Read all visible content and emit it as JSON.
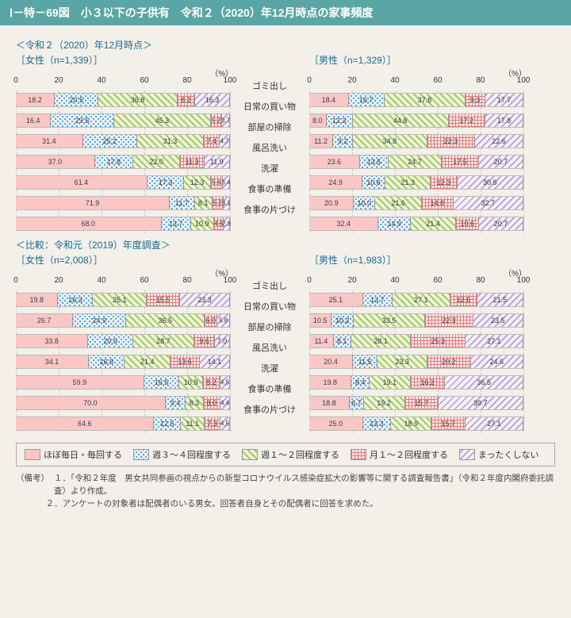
{
  "header": {
    "title": "Ⅰ－特－69図　小３以下の子供有　令和２（2020）年12月時点の家事頻度"
  },
  "category_labels": [
    "ゴミ出し",
    "日常の買い物",
    "部屋の掃除",
    "風呂洗い",
    "洗濯",
    "食事の準備",
    "食事の片づけ"
  ],
  "axis": {
    "ticks": [
      0,
      20,
      40,
      60,
      80,
      100
    ],
    "pct": "（%）"
  },
  "colors": {
    "header": "#5aa5a5",
    "panel_title": "#1a6b8f",
    "background": "#f3f0e9",
    "series": [
      "#fbc6c6",
      "#e8f0f8",
      "#eef5d8",
      "#fde8e8",
      "#f5f0f7"
    ]
  },
  "legend": {
    "labels": [
      "ほぼ毎日・毎回する",
      "週３～４回程度する",
      "週１～２回程度する",
      "月１～２回程度する",
      "まったくしない"
    ]
  },
  "sections": [
    {
      "title": "＜令和２（2020）年12月時点＞",
      "panels": [
        {
          "label": "［女性（n=1,339）］",
          "rows": [
            [
              18.2,
              20.5,
              36.8,
              8.2,
              16.3
            ],
            [
              16.4,
              29.5,
              45.3,
              5.2,
              3.7
            ],
            [
              31.4,
              25.2,
              31.3,
              7.4,
              4.7
            ],
            [
              37.0,
              17.8,
              22.0,
              11.3,
              11.9
            ],
            [
              61.4,
              17.3,
              12.3,
              5.6,
              3.4
            ],
            [
              71.9,
              11.7,
              8.1,
              5.2,
              3.1
            ],
            [
              68.0,
              13.7,
              10.9,
              4.6,
              2.8
            ]
          ]
        },
        {
          "label": "［男性（n=1,329）］",
          "rows": [
            [
              18.4,
              16.7,
              37.8,
              9.3,
              17.7
            ],
            [
              8.0,
              12.3,
              44.8,
              17.2,
              17.8
            ],
            [
              11.2,
              9.2,
              34.8,
              22.3,
              22.6
            ],
            [
              23.6,
              13.5,
              24.7,
              17.5,
              20.7
            ],
            [
              24.9,
              10.6,
              21.3,
              12.3,
              30.9
            ],
            [
              20.9,
              10.0,
              21.6,
              14.8,
              32.7
            ],
            [
              32.4,
              14.9,
              21.4,
              10.6,
              20.7
            ]
          ]
        }
      ]
    },
    {
      "title": "＜比較：令和元（2019）年度調査＞",
      "panels": [
        {
          "label": "［女性（n=2,008）］",
          "rows": [
            [
              19.8,
              16.3,
              25.1,
              15.5,
              23.3
            ],
            [
              26.7,
              24.9,
              36.5,
              6.0,
              5.8
            ],
            [
              33.8,
              20.9,
              28.7,
              9.6,
              7.0
            ],
            [
              34.1,
              16.8,
              21.4,
              13.6,
              14.1
            ],
            [
              59.9,
              16.5,
              10.9,
              8.2,
              4.5
            ],
            [
              70.0,
              9.4,
              8.3,
              8.0,
              4.4
            ],
            [
              64.6,
              12.5,
              11.1,
              7.3,
              4.5
            ]
          ]
        },
        {
          "label": "［男性（n=1,983）］",
          "rows": [
            [
              25.1,
              13.7,
              27.1,
              12.6,
              21.5
            ],
            [
              10.5,
              10.2,
              33.5,
              22.3,
              23.5
            ],
            [
              11.4,
              8.1,
              28.1,
              25.3,
              27.1
            ],
            [
              20.4,
              11.5,
              23.3,
              20.2,
              24.6
            ],
            [
              19.8,
              8.4,
              19.1,
              16.2,
              36.5
            ],
            [
              18.8,
              6.7,
              19.2,
              15.7,
              39.7
            ],
            [
              25.0,
              13.3,
              18.9,
              15.7,
              27.1
            ]
          ]
        }
      ]
    }
  ],
  "notes": {
    "lead": "（備考）",
    "items": [
      "１．「令和２年度　男女共同参画の視点からの新型コロナウイルス感染症拡大の影響等に関する調査報告書」（令和２年度内閣府委託調査）より作成。",
      "２．アンケートの対象者は配偶者のいる男女。回答者自身とその配偶者に回答を求めた。"
    ]
  }
}
